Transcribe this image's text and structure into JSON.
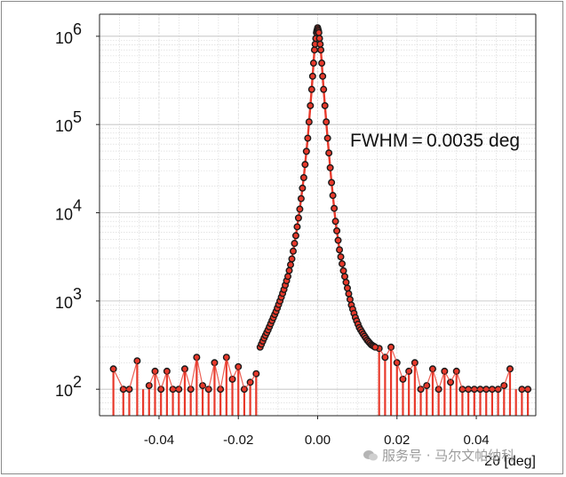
{
  "chart_data": {
    "type": "line",
    "xlabel": "2θ [deg]",
    "ylabel": "",
    "title": "",
    "annotation": "FWHM = 0.0035 deg",
    "xlim": [
      -0.055,
      0.055
    ],
    "ylim_log10": [
      1.7,
      6.25
    ],
    "y_scale": "log",
    "grid": true,
    "x_ticks": [
      -0.04,
      -0.02,
      0.0,
      0.02,
      0.04
    ],
    "x_tick_labels": [
      "-0.04",
      "-0.02",
      "0.00",
      "0.02",
      "0.04"
    ],
    "y_ticks": [
      {
        "base": "10",
        "exp": "2",
        "value": 100
      },
      {
        "base": "10",
        "exp": "3",
        "value": 1000
      },
      {
        "base": "10",
        "exp": "4",
        "value": 10000
      },
      {
        "base": "10",
        "exp": "5",
        "value": 100000
      },
      {
        "base": "10",
        "exp": "6",
        "value": 1000000
      }
    ],
    "colors": {
      "line": "#e8392b",
      "marker_fill": "#e8392b",
      "marker_edge": "#1a1a1a"
    },
    "noise_left_x": [
      -0.0515,
      -0.049,
      -0.0475,
      -0.0455,
      -0.044,
      -0.0425,
      -0.041,
      -0.0395,
      -0.038,
      -0.0365,
      -0.035,
      -0.0335,
      -0.032,
      -0.0305,
      -0.029,
      -0.0275,
      -0.026,
      -0.0245,
      -0.023,
      -0.0215,
      -0.02,
      -0.0185,
      -0.017,
      -0.0155
    ],
    "noise_left_y": [
      170,
      100,
      100,
      210,
      0,
      110,
      160,
      100,
      160,
      100,
      100,
      170,
      100,
      230,
      110,
      100,
      200,
      100,
      230,
      130,
      180,
      100,
      120,
      150
    ],
    "noise_right_x": [
      0.0155,
      0.017,
      0.0185,
      0.02,
      0.0215,
      0.023,
      0.0245,
      0.026,
      0.0275,
      0.029,
      0.0305,
      0.032,
      0.0335,
      0.035,
      0.0365,
      0.038,
      0.0395,
      0.041,
      0.0425,
      0.044,
      0.0455,
      0.047,
      0.0485,
      0.05,
      0.0515,
      0.053
    ],
    "noise_right_y": [
      290,
      230,
      300,
      200,
      130,
      160,
      200,
      100,
      110,
      170,
      100,
      160,
      120,
      160,
      100,
      100,
      100,
      100,
      100,
      100,
      100,
      110,
      170,
      0,
      100,
      100
    ],
    "peak_x": [
      -0.0145,
      -0.0135,
      -0.0125,
      -0.0115,
      -0.0105,
      -0.0095,
      -0.0085,
      -0.0075,
      -0.0065,
      -0.0055,
      -0.0045,
      -0.0035,
      -0.0025,
      -0.0015,
      -0.0008,
      -0.0003,
      0.0,
      0.0003,
      0.0008,
      0.0015,
      0.0025,
      0.0035,
      0.0045,
      0.0055,
      0.0065,
      0.0075,
      0.0085,
      0.0095,
      0.0105,
      0.0115,
      0.0125,
      0.0135,
      0.0145
    ],
    "peak_y": [
      300,
      380,
      470,
      600,
      760,
      1000,
      1350,
      1900,
      3000,
      5500,
      11000,
      25000,
      70000,
      250000,
      700000,
      1100000,
      1250000,
      1100000,
      700000,
      250000,
      70000,
      22000,
      8000,
      3800,
      2200,
      1400,
      900,
      650,
      500,
      420,
      360,
      320,
      300
    ]
  },
  "watermark": {
    "text": "服务号 · 马尔文帕纳科"
  }
}
